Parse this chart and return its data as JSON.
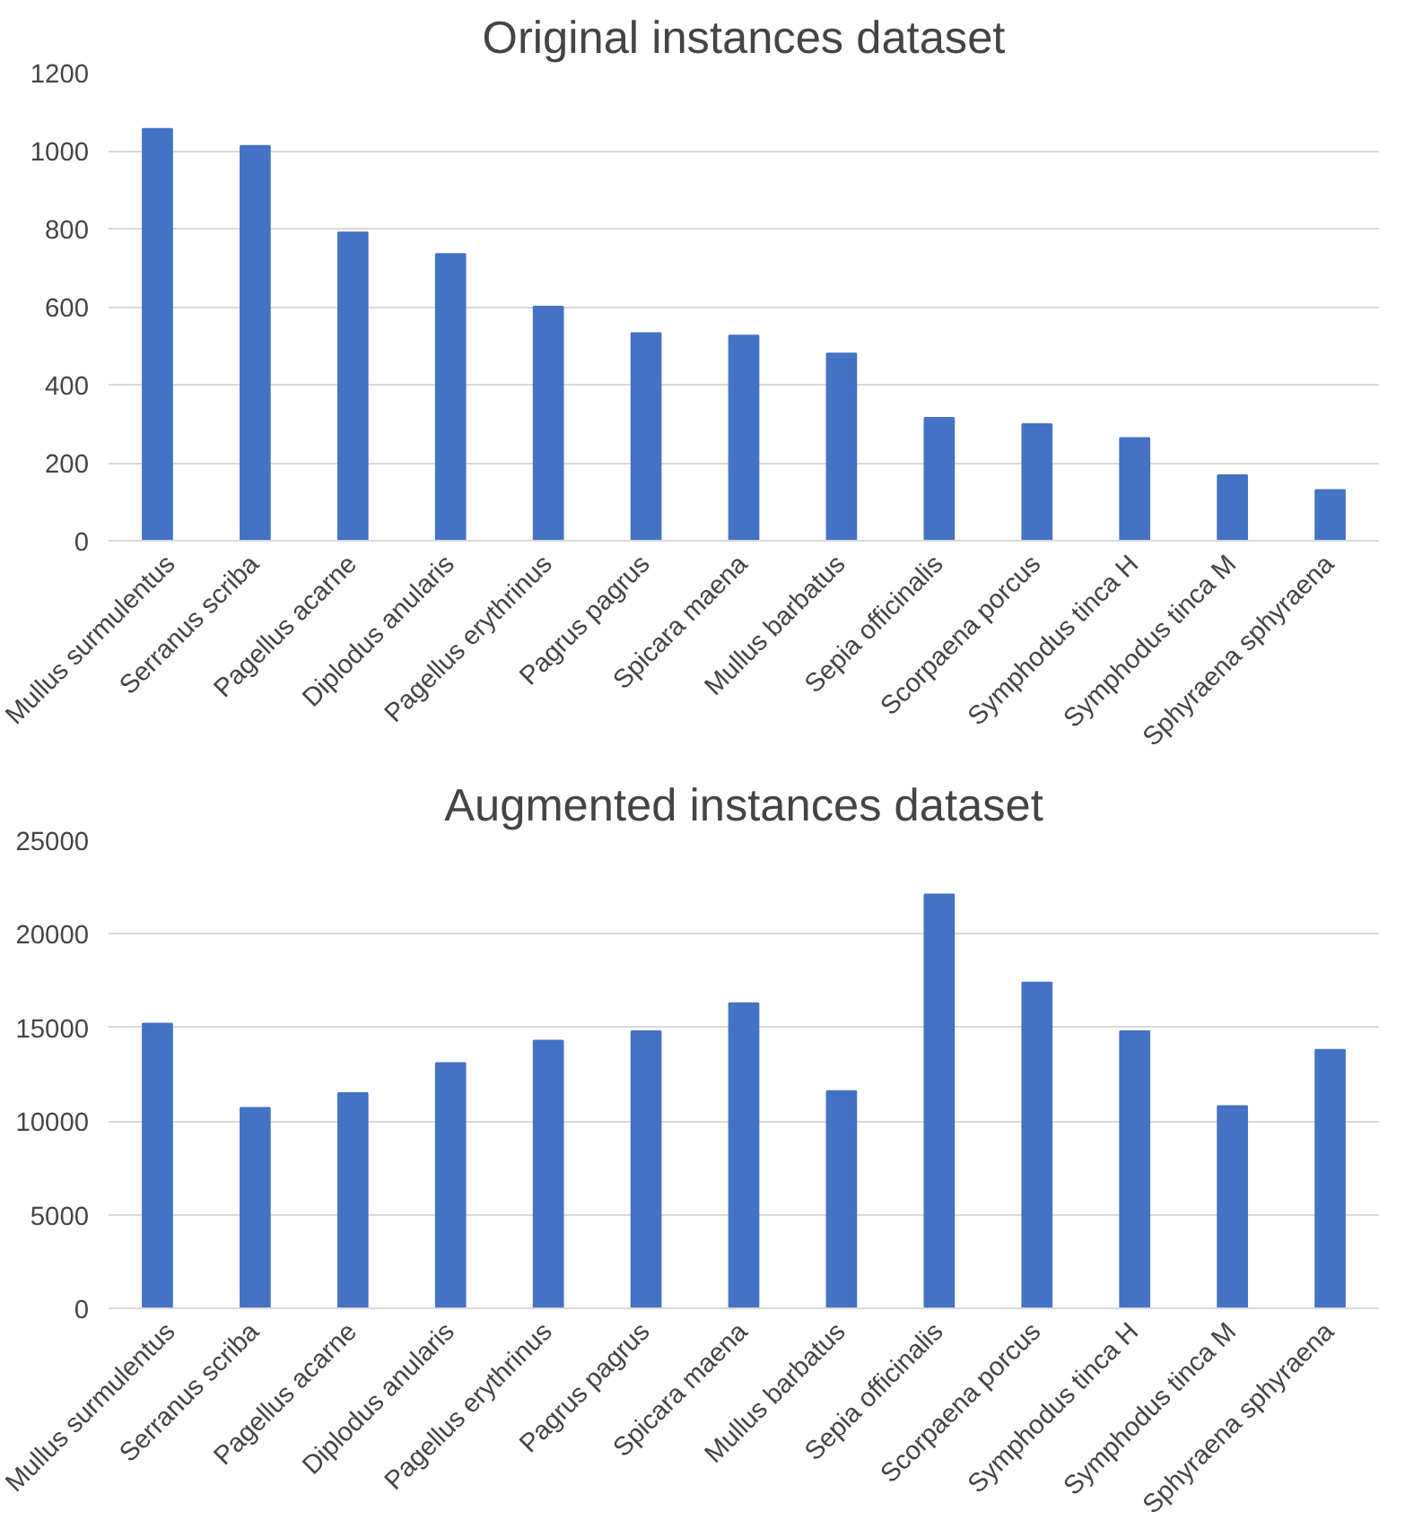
{
  "chart_data": [
    {
      "type": "bar",
      "title": "Original instances dataset",
      "categories": [
        "Mullus surmulentus",
        "Serranus scriba",
        "Pagellus acarne",
        "Diplodus anularis",
        "Pagellus erythrinus",
        "Pagrus pagrus",
        "Spicara maena",
        "Mullus barbatus",
        "Sepia officinalis",
        "Scorpaena porcus",
        "Symphodus tinca H",
        "Symphodus tinca M",
        "Sphyraena sphyraena"
      ],
      "values": [
        1056,
        1012,
        790,
        735,
        600,
        532,
        526,
        480,
        315,
        299,
        263,
        168,
        130
      ],
      "color": "#4472c4",
      "ylim": [
        0,
        1200
      ],
      "yticks": [
        0,
        200,
        400,
        600,
        800,
        1000,
        1200
      ],
      "grid": "y"
    },
    {
      "type": "bar",
      "title": "Augmented instances dataset",
      "categories": [
        "Mullus surmulentus",
        "Serranus scriba",
        "Pagellus acarne",
        "Diplodus anularis",
        "Pagellus erythrinus",
        "Pagrus pagrus",
        "Spicara maena",
        "Mullus barbatus",
        "Sepia officinalis",
        "Scorpaena porcus",
        "Symphodus tinca H",
        "Symphodus tinca M",
        "Sphyraena sphyraena"
      ],
      "values": [
        15200,
        10700,
        11500,
        13100,
        14300,
        14800,
        16300,
        11600,
        22100,
        17400,
        14800,
        10800,
        13800
      ],
      "color": "#4472c4",
      "ylim": [
        0,
        25000
      ],
      "yticks": [
        0,
        5000,
        10000,
        15000,
        20000,
        25000
      ],
      "grid": "y"
    }
  ]
}
